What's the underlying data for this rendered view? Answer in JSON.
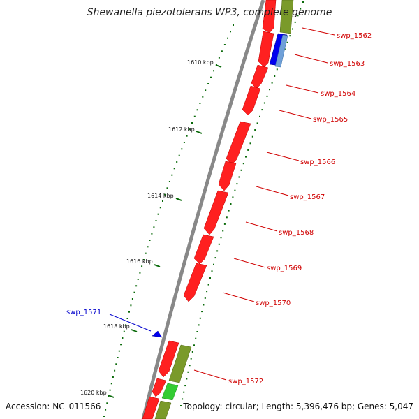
{
  "title": "Shewanella piezotolerans WP3, complete genome",
  "footer": {
    "accession": "Accession: NC_011566",
    "topology": "Topology: circular; Length: 5,396,476 bp; Genes: 5,047"
  },
  "ticks": [
    {
      "label": "1610 kbp"
    },
    {
      "label": "1612 kbp"
    },
    {
      "label": "1614 kbp"
    },
    {
      "label": "1616 kbp"
    },
    {
      "label": "1618 kbp"
    },
    {
      "label": "1620 kbp"
    }
  ],
  "gene_labels": [
    {
      "name": "swp_1562",
      "color": "#d00000"
    },
    {
      "name": "swp_1563",
      "color": "#d00000"
    },
    {
      "name": "swp_1564",
      "color": "#d00000"
    },
    {
      "name": "swp_1565",
      "color": "#d00000"
    },
    {
      "name": "swp_1566",
      "color": "#d00000"
    },
    {
      "name": "swp_1567",
      "color": "#d00000"
    },
    {
      "name": "swp_1568",
      "color": "#d00000"
    },
    {
      "name": "swp_1569",
      "color": "#d00000"
    },
    {
      "name": "swp_1570",
      "color": "#d00000"
    },
    {
      "name": "swp_1571",
      "color": "#0000cc"
    },
    {
      "name": "swp_1572",
      "color": "#d00000"
    }
  ],
  "colors": {
    "backbone": "#888888",
    "gene_red": "#ff0000",
    "gene_blue": "#0000ee",
    "gene_olive": "#7a9a2a",
    "gene_green": "#33cc33",
    "tick_green": "#0a6a0a",
    "label_red": "#d00000",
    "label_blue": "#0000cc"
  }
}
